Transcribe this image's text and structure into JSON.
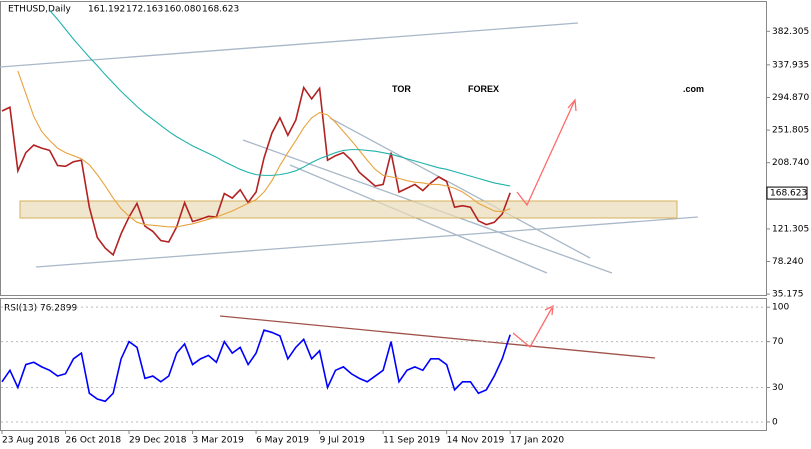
{
  "chart_data": [
    {
      "type": "line",
      "title": "ETHUSD,Daily",
      "ohlc": [
        "161.192",
        "172.163",
        "160.080",
        "168.623"
      ],
      "last_price": {
        "value": 168.623,
        "label": "168.623"
      },
      "watermark": [
        "TOR",
        "FOREX",
        ".com"
      ],
      "ylim": [
        34,
        421
      ],
      "yticks": [
        382.305,
        337.935,
        {
          "value": 294.87,
          "label": "294.870"
        },
        251.805,
        {
          "value": 208.74,
          "label": "208.740"
        },
        121.305,
        {
          "value": 78.24,
          "label": "78.240"
        },
        35.175
      ],
      "series": [
        {
          "name": "ETHUSD",
          "color": "#b22222",
          "values": [
            277,
            282,
            198,
            222,
            232,
            228,
            225,
            205,
            204,
            210,
            212,
            150,
            110,
            96,
            87,
            115,
            137,
            155,
            125,
            118,
            106,
            104,
            124,
            156,
            131,
            134,
            138,
            137,
            168,
            162,
            173,
            156,
            170,
            215,
            248,
            268,
            245,
            265,
            308,
            293,
            307,
            212,
            218,
            222,
            212,
            196,
            187,
            178,
            180,
            222,
            170,
            175,
            180,
            172,
            182,
            190,
            184,
            150,
            152,
            150,
            132,
            127,
            130,
            141,
            169
          ]
        },
        {
          "name": "MA",
          "color": "#e8a33d",
          "values": [
            null,
            null,
            330,
            300,
            270,
            250,
            238,
            228,
            222,
            218,
            214,
            206,
            193,
            178,
            162,
            148,
            138,
            130,
            127,
            126,
            125,
            124,
            124,
            126,
            128,
            131,
            134,
            137,
            141,
            145,
            150,
            155,
            160,
            170,
            185,
            205,
            222,
            238,
            255,
            268,
            275,
            272,
            262,
            250,
            238,
            225,
            212,
            200,
            192,
            190,
            188,
            185,
            183,
            182,
            180,
            180,
            178,
            175,
            170,
            163,
            155,
            150,
            145,
            144,
            148
          ]
        },
        {
          "name": "MA200",
          "color": "#20b2aa",
          "values": [
            null,
            null,
            null,
            null,
            null,
            null,
            410,
            398,
            385,
            372,
            360,
            348,
            337,
            325,
            314,
            303,
            293,
            283,
            274,
            266,
            258,
            250,
            243,
            237,
            231,
            226,
            221,
            216,
            210,
            205,
            200,
            196,
            193,
            192,
            192,
            193,
            195,
            198,
            203,
            209,
            214,
            218,
            222,
            225,
            226,
            226,
            225,
            224,
            222,
            220,
            217,
            214,
            211,
            208,
            205,
            202,
            200,
            197,
            194,
            191,
            188,
            185,
            182,
            180,
            178
          ]
        }
      ]
    },
    {
      "type": "line",
      "title": "RSI(13) 76.2899",
      "ylim": [
        -7,
        108
      ],
      "yticks": [
        100,
        70,
        30,
        0
      ],
      "categories": [
        "23 Aug 2018",
        null,
        null,
        null,
        null,
        null,
        null,
        null,
        "26 Oct 2018",
        null,
        null,
        null,
        null,
        null,
        null,
        null,
        "29 Dec 2018",
        null,
        null,
        null,
        null,
        null,
        null,
        null,
        "3 Mar 2019",
        null,
        null,
        null,
        null,
        null,
        null,
        null,
        "6 May 2019",
        null,
        null,
        null,
        null,
        null,
        null,
        null,
        "9 Jul 2019",
        null,
        null,
        null,
        null,
        null,
        null,
        null,
        "11 Sep 2019",
        null,
        null,
        null,
        null,
        null,
        null,
        null,
        "14 Nov 2019",
        null,
        null,
        null,
        null,
        null,
        null,
        null,
        "17 Jan 2020"
      ],
      "series": [
        {
          "name": "RSI",
          "color": "#0000ff",
          "values": [
            35,
            45,
            30,
            50,
            52,
            48,
            45,
            40,
            42,
            55,
            60,
            25,
            20,
            18,
            25,
            55,
            70,
            65,
            38,
            40,
            35,
            40,
            60,
            68,
            50,
            55,
            58,
            52,
            70,
            60,
            65,
            50,
            60,
            80,
            78,
            75,
            55,
            65,
            72,
            55,
            62,
            30,
            45,
            48,
            42,
            38,
            35,
            40,
            45,
            70,
            35,
            45,
            48,
            45,
            55,
            55,
            50,
            28,
            35,
            35,
            25,
            28,
            40,
            55,
            76
          ]
        }
      ]
    }
  ]
}
